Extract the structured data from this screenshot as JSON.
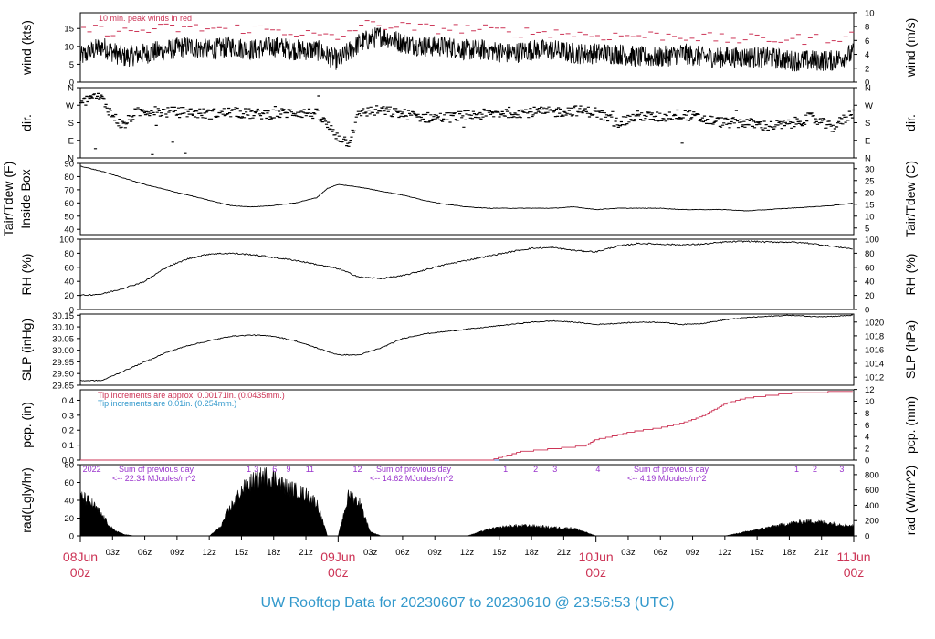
{
  "title": "UW Rooftop Data for 20230607  to  20230610 @ 23:56:53  (UTC)",
  "colors": {
    "red": "#cc3355",
    "blue": "#3399cc",
    "purple": "#9933cc",
    "black": "#000000"
  },
  "x_axis": {
    "hour_ticks": [
      "03z",
      "06z",
      "09z",
      "12z",
      "15z",
      "18z",
      "21z"
    ],
    "day_labels": [
      {
        "date": "08Jun",
        "time": "00z"
      },
      {
        "date": "09Jun",
        "time": "00z"
      },
      {
        "date": "10Jun",
        "time": "00z"
      },
      {
        "date": "11Jun",
        "time": "00z"
      }
    ]
  },
  "panels": {
    "wind": {
      "ylabel_left": "wind (kts)",
      "ylabel_right": "wind (m/s)",
      "left_ticks": [
        "0",
        "5",
        "10",
        "15"
      ],
      "right_ticks": [
        "0",
        "2",
        "4",
        "6",
        "8",
        "10"
      ],
      "ylim": [
        0,
        19.4
      ],
      "note": "10 min. peak winds in red"
    },
    "dir": {
      "ylabel_left": "dir.",
      "ylabel_right": "dir.",
      "ticks": [
        "N",
        "E",
        "S",
        "W",
        "N"
      ]
    },
    "temp": {
      "ylabel_left": [
        "Tair/Tdew (F)",
        "Inside Box"
      ],
      "ylabel_right": "Tair/Tdew (C)",
      "left_ticks": [
        "40",
        "50",
        "60",
        "70",
        "80",
        "90"
      ],
      "right_ticks": [
        "5",
        "10",
        "15",
        "20",
        "25",
        "30"
      ],
      "ylim": [
        36,
        90
      ]
    },
    "rh": {
      "ylabel_left": "RH (%)",
      "ylabel_right": "RH (%)",
      "ticks": [
        "0",
        "20",
        "40",
        "60",
        "80",
        "100"
      ],
      "ylim": [
        0,
        100
      ]
    },
    "slp": {
      "ylabel_left": "SLP (inHg)",
      "ylabel_right": "SLP (hPa)",
      "left_ticks": [
        "29.85",
        "29.90",
        "29.95",
        "30.00",
        "30.05",
        "30.10",
        "30.15"
      ],
      "right_ticks": [
        "1012",
        "1014",
        "1016",
        "1018",
        "1020"
      ],
      "ylim": [
        29.85,
        30.155
      ]
    },
    "pcp": {
      "ylabel_left": "pcp. (in)",
      "ylabel_right": "pcp. (mm)",
      "left_ticks": [
        "0.0",
        "0.1",
        "0.2",
        "0.3",
        "0.4"
      ],
      "right_ticks": [
        "0",
        "2",
        "4",
        "6",
        "8",
        "10",
        "12"
      ],
      "ylim": [
        0,
        0.47
      ],
      "note_red": "Tip increments are approx. 0.00171in. (0.0435mm.)",
      "note_blue": "Tip increments are 0.01in. (0.254mm.)"
    },
    "rad": {
      "ylabel_left": "rad(Lgly/hr)",
      "ylabel_right": "rad (W/m^2)",
      "left_ticks": [
        "0",
        "20",
        "40",
        "60",
        "80"
      ],
      "right_ticks": [
        "0",
        "200",
        "400",
        "600",
        "800"
      ],
      "ylim": [
        0,
        80
      ],
      "sum_label": "Sum of previous day",
      "sums": [
        "<-- 22.34 MJoules/m^2",
        "<-- 14.62 MJoules/m^2",
        "<-- 4.19 MJoules/m^2"
      ],
      "hour_markers": [
        {
          "text": "20",
          "t": 0.05
        },
        {
          "text": "22",
          "t": 0.9
        },
        {
          "text": "1",
          "t": 15.3
        },
        {
          "text": "3",
          "t": 16.0
        },
        {
          "text": "6",
          "t": 17.7
        },
        {
          "text": "9",
          "t": 19.0
        },
        {
          "text": "11",
          "t": 20.8
        },
        {
          "text": "12",
          "t": 25.2
        },
        {
          "text": "1",
          "t": 39.2
        },
        {
          "text": "2",
          "t": 42.0
        },
        {
          "text": "3",
          "t": 43.8
        },
        {
          "text": "4",
          "t": 47.8
        },
        {
          "text": "1",
          "t": 66.3
        },
        {
          "text": "2",
          "t": 68.0
        },
        {
          "text": "3",
          "t": 70.5
        }
      ]
    }
  },
  "chart_data": {
    "type": "line",
    "x_unit": "hours since 2023-06-08 00z",
    "x_range": [
      0,
      72
    ],
    "series": [
      {
        "name": "wind",
        "unit": "kts",
        "x": [
          0,
          2,
          4,
          6,
          8,
          10,
          12,
          14,
          16,
          18,
          20,
          22,
          24,
          26,
          28,
          30,
          32,
          34,
          36,
          38,
          40,
          42,
          44,
          46,
          48,
          50,
          52,
          54,
          56,
          58,
          60,
          62,
          64,
          66,
          68,
          70,
          72
        ],
        "values": [
          7,
          10,
          7,
          8,
          9,
          10,
          9,
          10,
          9,
          10,
          9,
          9,
          6,
          11,
          13,
          11,
          10,
          10,
          9,
          9,
          8,
          9,
          9,
          8,
          8,
          8,
          7,
          7,
          8,
          7,
          7,
          7,
          7,
          6,
          6,
          6,
          8
        ]
      },
      {
        "name": "10 min. peak winds",
        "unit": "kts",
        "x": [
          0,
          4,
          8,
          12,
          16,
          20,
          24,
          26,
          28,
          32,
          36,
          40,
          44,
          48,
          52,
          56,
          60,
          64,
          68,
          72
        ],
        "values": [
          15,
          14,
          15,
          15,
          15,
          14,
          12,
          16,
          16,
          15,
          15,
          14,
          14,
          13,
          13,
          13,
          12,
          12,
          12,
          13
        ]
      },
      {
        "name": "dir.",
        "unit": "N=0,E=1,S=2,W=3,N=4",
        "x": [
          0,
          1,
          2,
          3,
          4,
          5,
          6,
          8,
          10,
          12,
          14,
          16,
          18,
          20,
          22,
          24,
          25,
          26,
          28,
          30,
          32,
          34,
          36,
          38,
          40,
          42,
          44,
          46,
          48,
          50,
          52,
          54,
          56,
          58,
          60,
          62,
          64,
          66,
          68,
          70,
          72
        ],
        "values": [
          3.0,
          3.5,
          3.4,
          2.4,
          1.8,
          2.5,
          2.7,
          2.6,
          2.6,
          2.5,
          2.6,
          2.5,
          2.5,
          2.6,
          2.5,
          1.2,
          0.9,
          2.6,
          2.7,
          2.5,
          2.3,
          2.3,
          2.4,
          2.5,
          2.6,
          2.6,
          2.6,
          2.7,
          2.6,
          2.0,
          2.4,
          2.3,
          2.5,
          2.2,
          2.0,
          2.0,
          1.8,
          1.9,
          2.3,
          1.7,
          2.6
        ]
      },
      {
        "name": "Tair",
        "unit": "F",
        "x": [
          0,
          2,
          4,
          6,
          8,
          10,
          12,
          14,
          16,
          18,
          20,
          22,
          23,
          24,
          26,
          28,
          30,
          32,
          34,
          36,
          38,
          40,
          42,
          44,
          46,
          48,
          50,
          52,
          54,
          56,
          58,
          60,
          62,
          64,
          66,
          68,
          70,
          72
        ],
        "values": [
          88,
          84,
          79,
          74,
          70,
          66,
          62,
          58,
          57,
          58,
          60,
          64,
          71,
          74,
          72,
          69,
          66,
          62,
          59,
          57,
          56,
          56,
          56,
          56,
          57,
          55,
          56,
          56,
          56,
          55,
          55,
          55,
          54,
          55,
          56,
          57,
          58,
          60
        ]
      },
      {
        "name": "RH",
        "unit": "%",
        "x": [
          0,
          2,
          4,
          6,
          8,
          10,
          12,
          14,
          16,
          18,
          20,
          22,
          24,
          26,
          28,
          30,
          32,
          34,
          36,
          38,
          40,
          42,
          44,
          46,
          48,
          50,
          52,
          54,
          56,
          58,
          60,
          62,
          64,
          66,
          68,
          70,
          72
        ],
        "values": [
          20,
          22,
          30,
          40,
          60,
          72,
          79,
          80,
          78,
          74,
          70,
          64,
          58,
          46,
          44,
          48,
          56,
          64,
          70,
          76,
          82,
          87,
          88,
          84,
          82,
          90,
          94,
          93,
          92,
          93,
          96,
          97,
          96,
          96,
          94,
          90,
          86
        ]
      },
      {
        "name": "SLP",
        "unit": "inHg",
        "x": [
          0,
          2,
          4,
          6,
          8,
          10,
          12,
          14,
          16,
          18,
          20,
          22,
          24,
          26,
          28,
          30,
          32,
          34,
          36,
          38,
          40,
          42,
          44,
          46,
          48,
          50,
          52,
          54,
          56,
          58,
          60,
          62,
          64,
          66,
          68,
          70,
          72
        ],
        "values": [
          29.87,
          29.87,
          29.91,
          29.95,
          29.99,
          30.02,
          30.04,
          30.06,
          30.065,
          30.06,
          30.04,
          30.01,
          29.98,
          29.98,
          30.01,
          30.05,
          30.07,
          30.08,
          30.09,
          30.1,
          30.11,
          30.12,
          30.125,
          30.12,
          30.11,
          30.115,
          30.12,
          30.12,
          30.11,
          30.115,
          30.13,
          30.14,
          30.145,
          30.15,
          30.145,
          30.145,
          30.15
        ]
      },
      {
        "name": "pcp (red gauge)",
        "unit": "in",
        "x": [
          0,
          38,
          39,
          41,
          44,
          47,
          48,
          50,
          51,
          54,
          56,
          58,
          60,
          62,
          66,
          70,
          72
        ],
        "values": [
          0,
          0,
          0.02,
          0.06,
          0.08,
          0.1,
          0.14,
          0.17,
          0.19,
          0.22,
          0.25,
          0.3,
          0.38,
          0.42,
          0.45,
          0.46,
          0.46
        ]
      },
      {
        "name": "rad",
        "unit": "Lgly/hr",
        "x": [
          0,
          1,
          2,
          3,
          4,
          5,
          6,
          8,
          10,
          11,
          12,
          13,
          14,
          15,
          16,
          17,
          18,
          19,
          20,
          21,
          22,
          23,
          24,
          25,
          26,
          27,
          28,
          30,
          32,
          36,
          38,
          40,
          42,
          44,
          46,
          48,
          50,
          54,
          56,
          58,
          60,
          62,
          64,
          66,
          68,
          70,
          72
        ],
        "values": [
          48,
          40,
          25,
          8,
          2,
          0,
          0,
          0,
          0,
          0,
          0,
          10,
          35,
          55,
          65,
          72,
          70,
          60,
          55,
          50,
          40,
          0,
          0,
          50,
          40,
          5,
          0,
          0,
          0,
          0,
          8,
          12,
          12,
          10,
          9,
          0,
          0,
          0,
          0,
          0,
          0,
          5,
          10,
          15,
          18,
          15,
          12
        ]
      }
    ]
  }
}
